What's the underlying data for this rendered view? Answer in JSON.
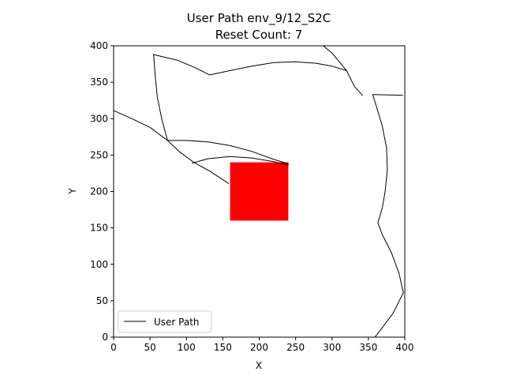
{
  "chart_data": {
    "type": "line",
    "title": "User Path env_9/12_S2C",
    "subtitle": "Reset Count: 7",
    "xlabel": "X",
    "ylabel": "Y",
    "xlim": [
      0,
      400
    ],
    "ylim": [
      0,
      400
    ],
    "xticks": [
      "0",
      "50",
      "100",
      "150",
      "200",
      "250",
      "300",
      "350",
      "400"
    ],
    "yticks": [
      "0",
      "50",
      "100",
      "150",
      "200",
      "250",
      "300",
      "350",
      "400"
    ],
    "grid": false,
    "legend": {
      "placement": "lower-left",
      "entries": [
        "User Path"
      ]
    },
    "obstacle": {
      "shape": "rectangle",
      "x": [
        160,
        240
      ],
      "y": [
        160,
        240
      ],
      "color": "#ff0000"
    },
    "series": [
      {
        "name": "User Path",
        "color": "#000000",
        "segments": [
          [
            [
              359,
              0
            ],
            [
              372,
              17
            ],
            [
              384,
              33
            ],
            [
              398,
              61
            ]
          ],
          [
            [
              398,
              61
            ],
            [
              392,
              88
            ],
            [
              382,
              115
            ],
            [
              369,
              141
            ],
            [
              363,
              157
            ]
          ],
          [
            [
              363,
              157
            ],
            [
              369,
              177
            ],
            [
              373,
              200
            ],
            [
              376,
              230
            ],
            [
              375,
              260
            ],
            [
              369,
              290
            ],
            [
              363,
              310
            ],
            [
              356,
              333
            ]
          ],
          [
            [
              356,
              333
            ],
            [
              397,
              332
            ]
          ],
          [
            [
              342,
              332
            ],
            [
              331,
              344
            ],
            [
              320,
              366
            ]
          ],
          [
            [
              320,
              366
            ],
            [
              300,
              390
            ],
            [
              288,
              400
            ]
          ],
          [
            [
              320,
              366
            ],
            [
              300,
              372
            ],
            [
              278,
              376
            ],
            [
              250,
              378
            ],
            [
              220,
              377
            ],
            [
              190,
              372
            ],
            [
              160,
              366
            ],
            [
              132,
              360
            ]
          ],
          [
            [
              132,
              360
            ],
            [
              112,
              370
            ],
            [
              88,
              380
            ],
            [
              55,
              388
            ]
          ],
          [
            [
              55,
              388
            ],
            [
              57,
              360
            ],
            [
              60,
              330
            ],
            [
              66,
              300
            ],
            [
              74,
              270
            ]
          ],
          [
            [
              0,
              311
            ],
            [
              25,
              300
            ],
            [
              50,
              288
            ],
            [
              74,
              270
            ]
          ],
          [
            [
              74,
              270
            ],
            [
              90,
              255
            ],
            [
              110,
              240
            ],
            [
              132,
              228
            ],
            [
              158,
              211
            ]
          ],
          [
            [
              74,
              270
            ],
            [
              100,
              270
            ],
            [
              130,
              268
            ],
            [
              160,
              263
            ],
            [
              190,
              255
            ],
            [
              220,
              244
            ],
            [
              240,
              238
            ]
          ],
          [
            [
              108,
              239
            ],
            [
              130,
              245
            ],
            [
              160,
              248
            ],
            [
              190,
              246
            ],
            [
              220,
              241
            ],
            [
              240,
              236
            ]
          ]
        ]
      }
    ]
  }
}
